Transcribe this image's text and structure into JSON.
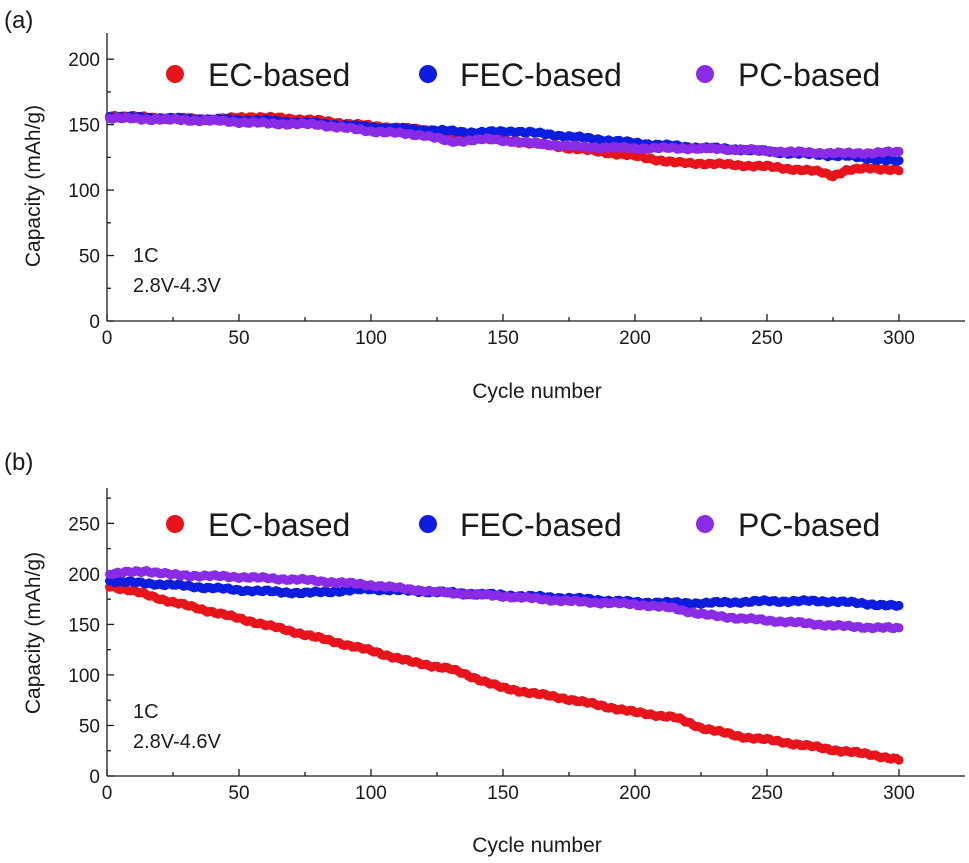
{
  "colors": {
    "ec": "#e8141b",
    "fec": "#0d1de0",
    "pc": "#8a2be6"
  },
  "chart_data": [
    {
      "panel_label": "(a)",
      "type": "scatter",
      "xlabel": "Cycle number",
      "ylabel": "Capacity (mAh/g)",
      "xlim": [
        0,
        325
      ],
      "ylim": [
        0,
        220
      ],
      "xticks": [
        0,
        50,
        100,
        150,
        200,
        250,
        300
      ],
      "yticks": [
        0,
        50,
        100,
        150,
        200
      ],
      "legend_position": "top",
      "annotations": [
        "1C",
        "2.8V-4.3V"
      ],
      "series": [
        {
          "name": "EC-based",
          "color": "#e8141b",
          "x": [
            1,
            20,
            40,
            55,
            75,
            100,
            120,
            140,
            160,
            180,
            200,
            215,
            230,
            250,
            260,
            270,
            275,
            280,
            290,
            300
          ],
          "y": [
            157,
            155,
            154,
            156,
            154,
            149,
            146,
            140,
            136,
            131,
            126,
            121,
            120,
            118,
            116,
            114,
            111,
            115,
            117,
            115
          ]
        },
        {
          "name": "FEC-based",
          "color": "#0d1de0",
          "x": [
            1,
            20,
            40,
            60,
            80,
            100,
            120,
            140,
            155,
            170,
            185,
            200,
            220,
            240,
            260,
            280,
            300
          ],
          "y": [
            156,
            155,
            154,
            153,
            151,
            148,
            146,
            144,
            145,
            142,
            139,
            136,
            133,
            131,
            128,
            126,
            122
          ]
        },
        {
          "name": "PC-based",
          "color": "#8a2be6",
          "x": [
            1,
            20,
            40,
            60,
            80,
            100,
            120,
            130,
            145,
            160,
            180,
            200,
            220,
            240,
            260,
            280,
            300
          ],
          "y": [
            155,
            154,
            153,
            151,
            150,
            145,
            142,
            137,
            139,
            136,
            133,
            132,
            132,
            131,
            129,
            128,
            129
          ]
        }
      ]
    },
    {
      "panel_label": "(b)",
      "type": "scatter",
      "xlabel": "Cycle number",
      "ylabel": "Capacity (mAh/g)",
      "xlim": [
        0,
        325
      ],
      "ylim": [
        0,
        285
      ],
      "xticks": [
        0,
        50,
        100,
        150,
        200,
        250,
        300
      ],
      "yticks": [
        0,
        50,
        100,
        150,
        200,
        250
      ],
      "legend_position": "top",
      "annotations": [
        "1C",
        "2.8V-4.6V"
      ],
      "series": [
        {
          "name": "EC-based",
          "color": "#e8141b",
          "x": [
            1,
            10,
            25,
            50,
            75,
            100,
            115,
            130,
            150,
            175,
            200,
            215,
            225,
            240,
            250,
            260,
            275,
            290,
            300
          ],
          "y": [
            188,
            183,
            172,
            156,
            140,
            124,
            113,
            106,
            87,
            76,
            63,
            58,
            48,
            39,
            36,
            32,
            26,
            21,
            16
          ]
        },
        {
          "name": "FEC-based",
          "color": "#0d1de0",
          "x": [
            1,
            25,
            50,
            75,
            100,
            125,
            150,
            175,
            200,
            225,
            250,
            275,
            300
          ],
          "y": [
            193,
            189,
            184,
            181,
            185,
            182,
            179,
            176,
            172,
            171,
            173,
            173,
            168
          ]
        },
        {
          "name": "PC-based",
          "color": "#8a2be6",
          "x": [
            1,
            15,
            25,
            50,
            75,
            100,
            125,
            150,
            175,
            200,
            215,
            225,
            240,
            260,
            280,
            300
          ],
          "y": [
            200,
            203,
            199,
            197,
            194,
            189,
            182,
            178,
            173,
            170,
            166,
            160,
            156,
            152,
            148,
            146
          ]
        }
      ]
    }
  ]
}
